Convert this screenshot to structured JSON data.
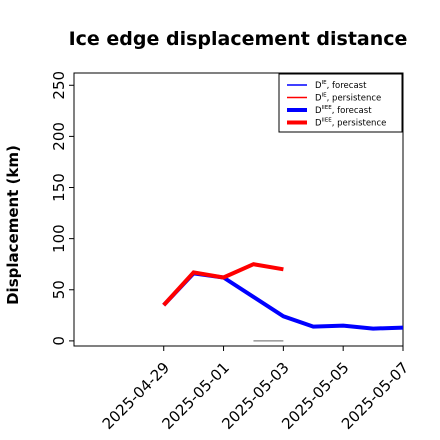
{
  "chart_data": {
    "type": "line",
    "title": "Ice edge displacement distance",
    "xlabel": "",
    "ylabel": "Displacement (km)",
    "x_ticks": [
      "2025-04-29",
      "2025-05-01",
      "2025-05-03",
      "2025-05-05",
      "2025-05-07"
    ],
    "x_tick_colors": [
      "#228b22",
      "#000000",
      "#000000",
      "#000000",
      "#000000"
    ],
    "xlim": [
      "2025-04-26",
      "2025-05-07"
    ],
    "ylim": [
      -5,
      262
    ],
    "y_ticks": [
      0,
      50,
      100,
      150,
      200,
      250
    ],
    "grid": false,
    "legend_position": "top-right",
    "series": [
      {
        "name": "D^IE, forecast",
        "legend_base": "D",
        "legend_sup": "IE",
        "legend_suffix": ", forecast",
        "color": "#0000ff",
        "style": "thin",
        "x": [
          "2025-05-02",
          "2025-05-03"
        ],
        "y": [
          0,
          0
        ]
      },
      {
        "name": "D^IE, persistence",
        "legend_base": "D",
        "legend_sup": "IE",
        "legend_suffix": ", persistence",
        "color": "#ff0000",
        "style": "thin",
        "x": [
          "2025-05-02",
          "2025-05-03"
        ],
        "y": [
          0,
          0
        ]
      },
      {
        "name": "D^IIEE, forecast",
        "legend_base": "D",
        "legend_sup": "IIEE",
        "legend_suffix": ", forecast",
        "color": "#0000ff",
        "style": "thick",
        "x": [
          "2025-04-29",
          "2025-04-30",
          "2025-05-01",
          "2025-05-02",
          "2025-05-03",
          "2025-05-04",
          "2025-05-05",
          "2025-05-06",
          "2025-05-07"
        ],
        "y": [
          35,
          66,
          62,
          43,
          24,
          14,
          15,
          12,
          13
        ]
      },
      {
        "name": "D^IIEE, persistence",
        "legend_base": "D",
        "legend_sup": "IIEE",
        "legend_suffix": ", persistence",
        "color": "#ff0000",
        "style": "thick",
        "x": [
          "2025-04-29",
          "2025-04-30",
          "2025-05-01",
          "2025-05-02",
          "2025-05-03"
        ],
        "y": [
          35,
          67,
          62,
          75,
          70
        ]
      }
    ],
    "reference_segment": {
      "color": "#808080",
      "x": [
        "2025-05-02",
        "2025-05-03"
      ],
      "y": [
        0,
        0
      ]
    }
  }
}
